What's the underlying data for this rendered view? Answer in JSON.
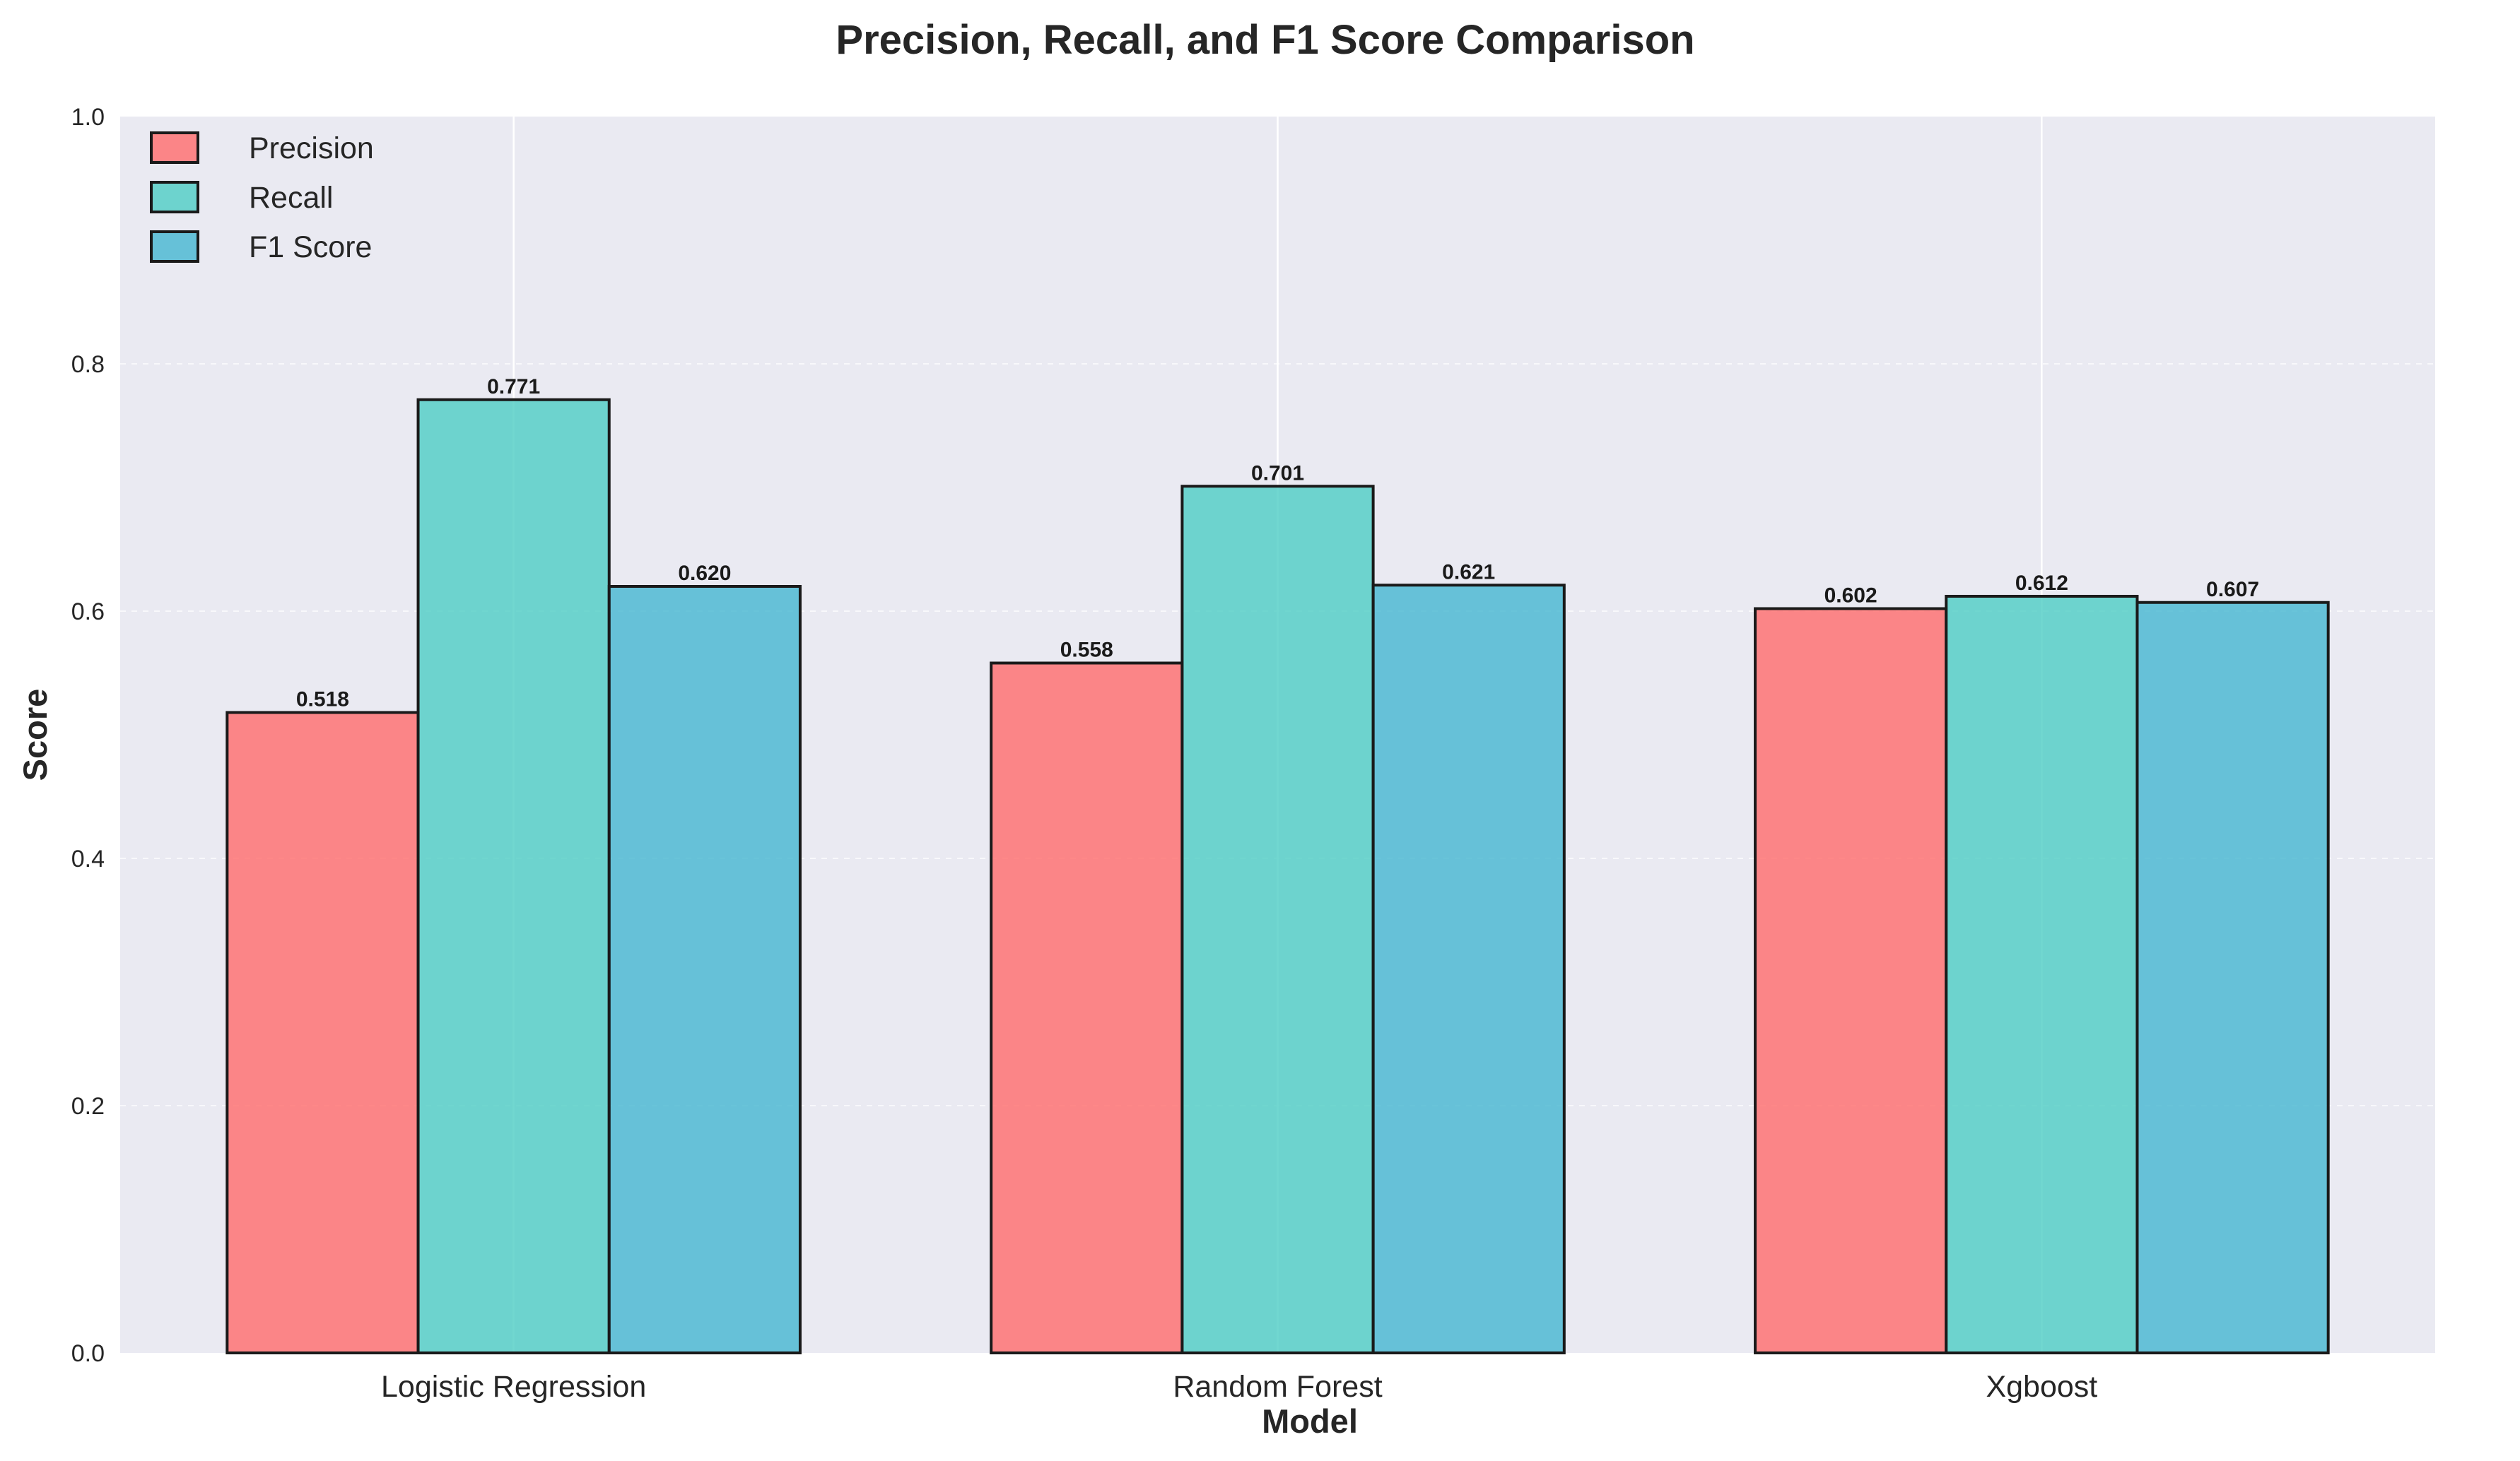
{
  "chart_data": {
    "type": "bar",
    "title": "Precision, Recall, and F1 Score Comparison",
    "xlabel": "Model",
    "ylabel": "Score",
    "categories": [
      "Logistic Regression",
      "Random Forest",
      "Xgboost"
    ],
    "series": [
      {
        "name": "Precision",
        "values": [
          0.518,
          0.558,
          0.602
        ],
        "color": "#ff6b6b"
      },
      {
        "name": "Recall",
        "values": [
          0.771,
          0.701,
          0.612
        ],
        "color": "#4ecdc4"
      },
      {
        "name": "F1 Score",
        "values": [
          0.62,
          0.621,
          0.607
        ],
        "color": "#45b7d1"
      }
    ],
    "ylim": [
      0,
      1.0
    ],
    "yticks": [
      0.0,
      0.2,
      0.4,
      0.6,
      0.8,
      1.0
    ],
    "ytick_labels": [
      "0.0",
      "0.2",
      "0.4",
      "0.6",
      "0.8",
      "1.0"
    ],
    "value_labels": [
      [
        "0.518",
        "0.558",
        "0.602"
      ],
      [
        "0.771",
        "0.701",
        "0.612"
      ],
      [
        "0.620",
        "0.621",
        "0.607"
      ]
    ],
    "grid": true,
    "legend_position": "top-left",
    "plot_background": "#eaeaf2",
    "bar_edge_color": "#1a1a1a"
  }
}
